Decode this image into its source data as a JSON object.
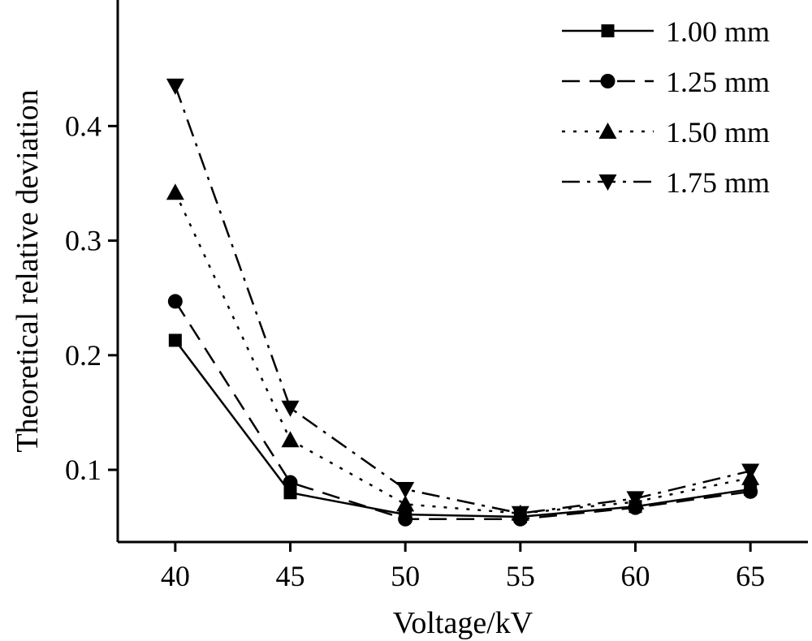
{
  "chart_data": {
    "type": "line",
    "title": "",
    "xlabel": "Voltage/kV",
    "ylabel": "Theoretical relative deviation",
    "x": [
      40,
      45,
      50,
      55,
      60,
      65
    ],
    "xlim": [
      37.5,
      67.5
    ],
    "ylim": [
      0.037,
      0.51
    ],
    "xticks": [
      40,
      45,
      50,
      55,
      60,
      65
    ],
    "yticks": [
      0.1,
      0.2,
      0.3,
      0.4
    ],
    "ytick_labels": [
      "0.1",
      "0.2",
      "0.3",
      "0.4"
    ],
    "grid": false,
    "legend_position": "top-right",
    "series": [
      {
        "name": "1.00 mm",
        "marker": "square",
        "line_style": "solid",
        "values": [
          0.213,
          0.08,
          0.061,
          0.059,
          0.068,
          0.083
        ]
      },
      {
        "name": "1.25 mm",
        "marker": "circle",
        "line_style": "dashed",
        "values": [
          0.247,
          0.089,
          0.057,
          0.057,
          0.067,
          0.081
        ]
      },
      {
        "name": "1.50 mm",
        "marker": "triangle-up",
        "line_style": "dotted",
        "values": [
          0.342,
          0.126,
          0.07,
          0.062,
          0.072,
          0.093
        ]
      },
      {
        "name": "1.75 mm",
        "marker": "triangle-down",
        "line_style": "dash-dot",
        "values": [
          0.435,
          0.154,
          0.083,
          0.062,
          0.075,
          0.099
        ]
      }
    ]
  }
}
